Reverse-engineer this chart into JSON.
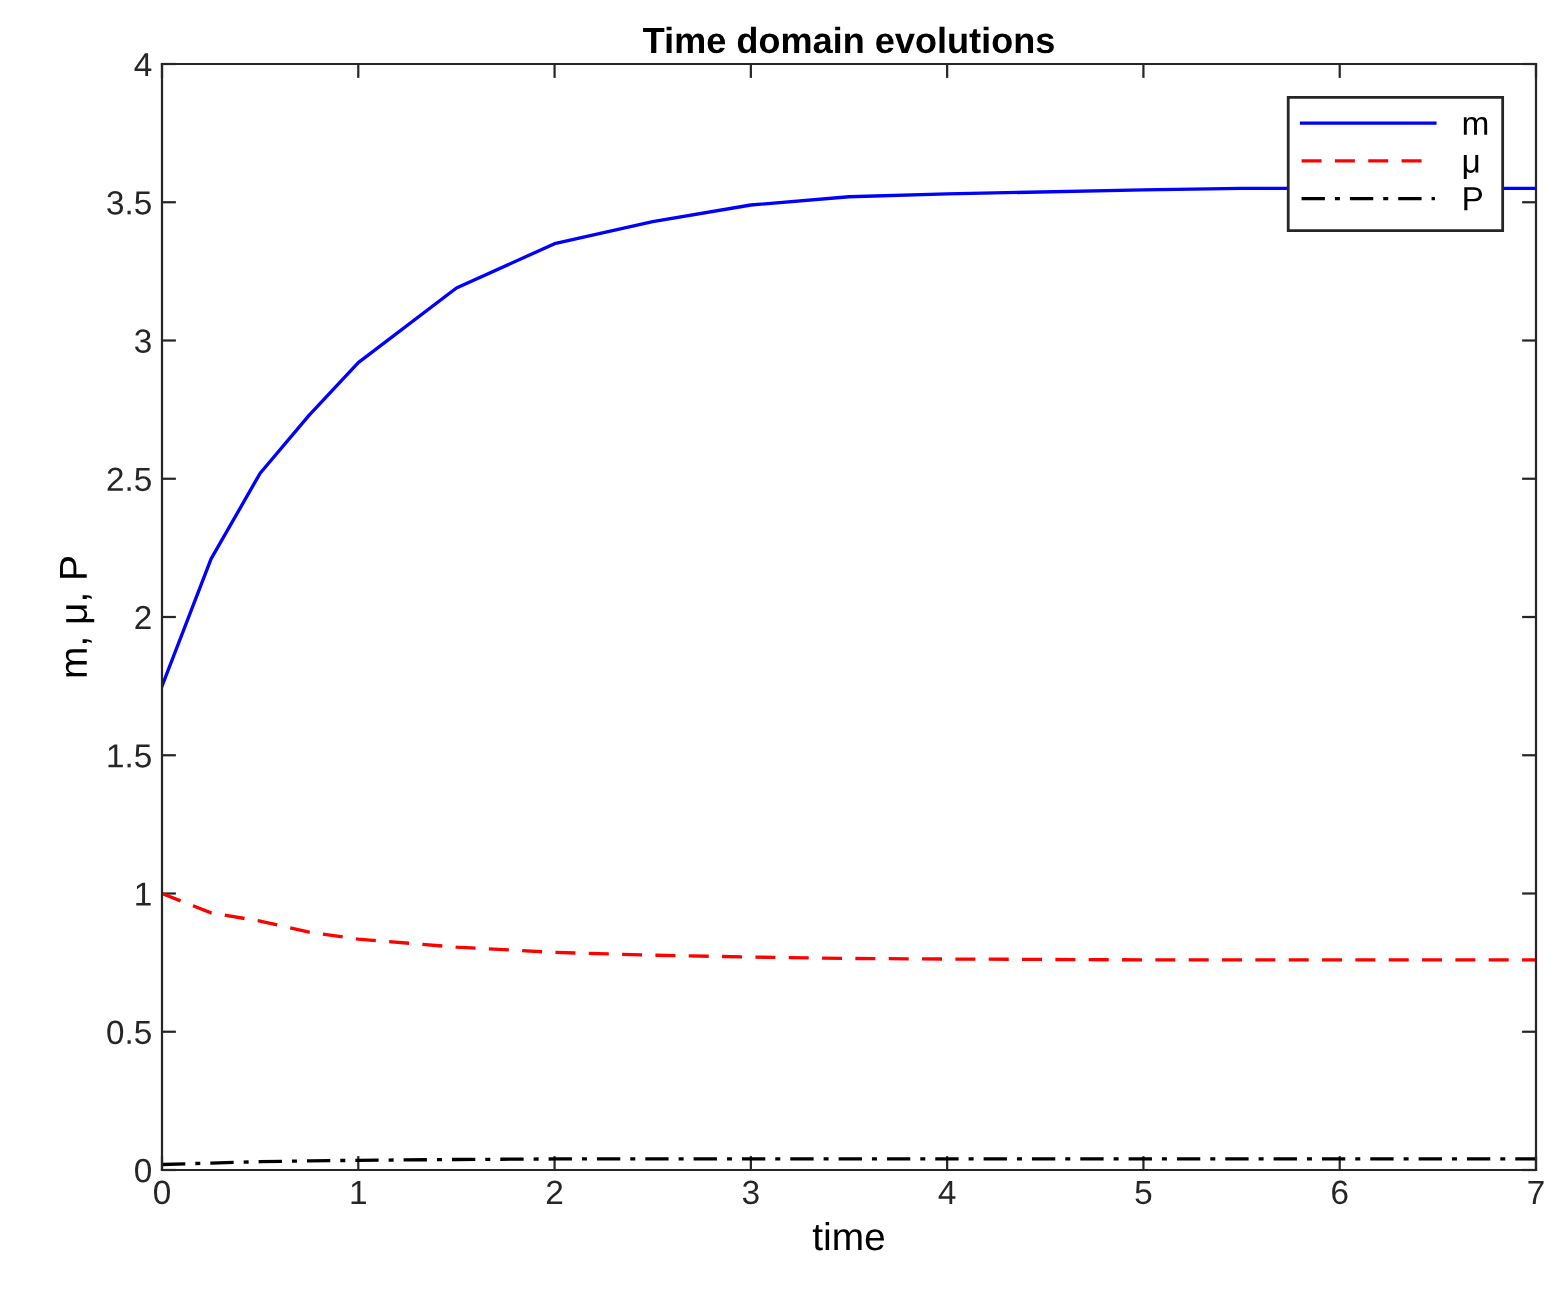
{
  "chart_data": {
    "type": "line",
    "title": "Time domain evolutions",
    "xlabel": "time",
    "ylabel": "m, μ, P",
    "xlim": [
      0,
      7
    ],
    "ylim": [
      0,
      4
    ],
    "xticks": [
      0,
      1,
      2,
      3,
      4,
      5,
      6,
      7
    ],
    "yticks": [
      0,
      0.5,
      1,
      1.5,
      2,
      2.5,
      3,
      3.5,
      4
    ],
    "grid": false,
    "legend": "top right",
    "marker": "none",
    "x": [
      0,
      0.25,
      0.5,
      0.75,
      1,
      1.5,
      2,
      2.5,
      3,
      3.5,
      4,
      5,
      5.5,
      7
    ],
    "series": [
      {
        "name": "m",
        "color": "#0000ff",
        "line_style": "solid",
        "values": [
          1.75,
          2.21,
          2.52,
          2.73,
          2.92,
          3.19,
          3.35,
          3.43,
          3.49,
          3.52,
          3.53,
          3.545,
          3.55,
          3.55
        ]
      },
      {
        "name": "μ",
        "color": "#ff0000",
        "line_style": "dashed",
        "values": [
          1.0,
          0.93,
          0.9,
          0.86,
          0.835,
          0.806,
          0.787,
          0.777,
          0.77,
          0.765,
          0.763,
          0.76,
          0.76,
          0.76
        ]
      },
      {
        "name": "P",
        "color": "#000000",
        "line_style": "dashdot",
        "values": [
          0.02,
          0.025,
          0.03,
          0.033,
          0.035,
          0.038,
          0.04,
          0.04,
          0.04,
          0.04,
          0.04,
          0.04,
          0.04,
          0.04
        ]
      }
    ]
  }
}
